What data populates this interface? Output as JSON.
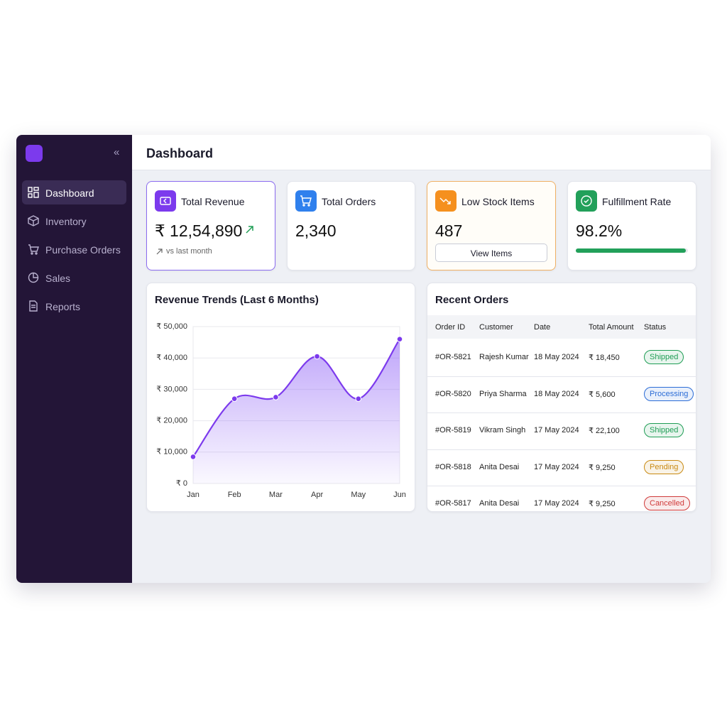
{
  "sidebar": {
    "items": [
      "Dashboard",
      "Inventory",
      "Purchase Orders",
      "Sales",
      "Reports"
    ]
  },
  "header": {
    "title": "Dashboard"
  },
  "kpis": [
    {
      "title": "Total Revenue",
      "value": "₹ 12,54,890",
      "note": "vs last month"
    },
    {
      "title": "Total Orders",
      "value": "2,340"
    },
    {
      "title": "Low Stock Items",
      "value": "487",
      "button": "View Items"
    },
    {
      "title": "Fulfillment Rate",
      "value": "98.2%",
      "progress": 98.2
    }
  ],
  "chart_data": {
    "type": "line",
    "title": "Revenue Trends (Last 6 Months)",
    "categories": [
      "Jan",
      "Feb",
      "Mar",
      "Apr",
      "May",
      "Jun"
    ],
    "values": [
      8500,
      27000,
      27500,
      40500,
      27000,
      46000
    ],
    "color": "#7c3aed",
    "ylim": [
      0,
      50000
    ],
    "yticks": [
      {
        "value": 0,
        "label": "₹ 0"
      },
      {
        "value": 10000,
        "label": "₹ 10,000"
      },
      {
        "value": 20000,
        "label": "₹ 20,000"
      },
      {
        "value": 30000,
        "label": "₹ 30,000"
      },
      {
        "value": 40000,
        "label": "₹ 40,000"
      },
      {
        "value": 50000,
        "label": "₹ 50,000"
      }
    ],
    "grid": true
  },
  "orders": {
    "title": "Recent Orders",
    "columns": [
      "Order ID",
      "Customer",
      "Date",
      "Total Amount",
      "Status"
    ],
    "rows": [
      [
        "#OR-5821",
        "Rajesh Kumar",
        "18 May 2024",
        "₹ 18,450",
        "Shipped"
      ],
      [
        "#OR-5820",
        "Priya Sharma",
        "18 May 2024",
        "₹ 5,600",
        "Processing"
      ],
      [
        "#OR-5819",
        "Vikram Singh",
        "17 May 2024",
        "₹ 22,100",
        "Shipped"
      ],
      [
        "#OR-5818",
        "Anita Desai",
        "17 May 2024",
        "₹ 9,250",
        "Pending"
      ],
      [
        "#OR-5817",
        "Anita Desai",
        "17 May 2024",
        "₹ 9,250",
        "Cancelled"
      ]
    ],
    "status_colors": [
      "#1f9d55",
      "#2b6cd6",
      "#1f9d55",
      "#c98a12",
      "#d03a3a"
    ]
  }
}
